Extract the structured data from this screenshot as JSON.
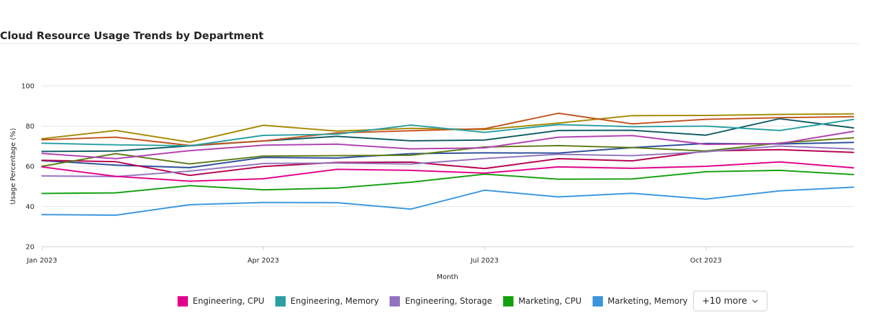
{
  "chart_data": {
    "type": "line",
    "title": "Cloud Resource Usage Trends by Department",
    "xlabel": "Month",
    "ylabel": "Usage Percentage (%)",
    "ylim": [
      20,
      100
    ],
    "yticks": [
      "20",
      "40",
      "60",
      "80",
      "100"
    ],
    "x": [
      "2023-01",
      "2023-02",
      "2023-03",
      "2023-04",
      "2023-05",
      "2023-06",
      "2023-07",
      "2023-08",
      "2023-09",
      "2023-10",
      "2023-11",
      "2023-12"
    ],
    "xticks": [
      {
        "month_index": 0,
        "label": "Jan 2023"
      },
      {
        "month_index": 3,
        "label": "Apr 2023"
      },
      {
        "month_index": 6,
        "label": "Jul 2023"
      },
      {
        "month_index": 9,
        "label": "Oct 2023"
      }
    ],
    "grid": true,
    "legend_position": "bottom",
    "series": [
      {
        "name": "Engineering, CPU",
        "color": "#e3008c",
        "values": [
          59.7,
          55.0,
          52.6,
          53.8,
          58.5,
          58.0,
          56.6,
          59.7,
          59.0,
          60.0,
          62.2,
          59.2
        ]
      },
      {
        "name": "Engineering, Memory",
        "color": "#2aa0a4",
        "values": [
          71.5,
          70.7,
          70.2,
          75.4,
          76.0,
          80.5,
          76.9,
          80.8,
          79.7,
          80.0,
          77.8,
          83.3
        ]
      },
      {
        "name": "Engineering, Storage",
        "color": "#9373c0",
        "values": [
          55.2,
          54.9,
          57.6,
          61.4,
          61.6,
          61.1,
          63.9,
          66.0,
          65.3,
          67.2,
          70.1,
          68.6
        ]
      },
      {
        "name": "Marketing, CPU",
        "color": "#13a10e",
        "values": [
          46.5,
          46.8,
          50.4,
          48.3,
          49.2,
          52.1,
          56.1,
          53.6,
          53.7,
          57.3,
          58.0,
          55.9
        ]
      },
      {
        "name": "Marketing, Memory",
        "color": "#3a96dd",
        "values": [
          36.0,
          35.7,
          40.9,
          42.0,
          41.9,
          38.7,
          48.1,
          44.8,
          46.6,
          43.7,
          47.8,
          49.6
        ]
      },
      {
        "name": "",
        "color": "#c4531f",
        "values": [
          73.2,
          74.5,
          70.4,
          72.6,
          76.6,
          77.7,
          78.7,
          86.4,
          81.1,
          83.4,
          84.2,
          84.7
        ]
      },
      {
        "name": "",
        "color": "#a58a05",
        "values": [
          73.7,
          77.8,
          72.0,
          80.4,
          77.5,
          78.9,
          78.3,
          81.5,
          85.2,
          85.3,
          85.8,
          86.1
        ]
      },
      {
        "name": "",
        "color": "#0e5c63",
        "values": [
          67.4,
          67.6,
          70.2,
          72.6,
          74.9,
          72.7,
          73.1,
          77.8,
          77.9,
          75.5,
          83.7,
          79.1
        ]
      },
      {
        "name": "",
        "color": "#b13fb1",
        "values": [
          66.4,
          63.8,
          67.8,
          70.5,
          71.0,
          68.7,
          69.2,
          74.5,
          75.3,
          70.9,
          71.3,
          77.4
        ]
      },
      {
        "name": "",
        "color": "#5f7d17",
        "values": [
          60.0,
          66.3,
          61.2,
          65.1,
          65.3,
          65.5,
          69.6,
          70.3,
          69.3,
          67.6,
          71.6,
          74.2
        ]
      },
      {
        "name": "",
        "color": "#b7004f",
        "values": [
          63.0,
          62.3,
          55.5,
          59.9,
          61.9,
          62.1,
          58.9,
          63.8,
          62.7,
          67.6,
          68.3,
          66.9
        ]
      },
      {
        "name": "",
        "color": "#2b4f9b",
        "values": [
          62.8,
          60.6,
          59.3,
          64.4,
          64.1,
          66.3,
          66.7,
          66.6,
          69.3,
          71.4,
          71.1,
          71.9
        ]
      }
    ]
  },
  "legend": {
    "more_label": "+10 more"
  },
  "icons": {
    "more_chevron": "chevron-down-icon"
  }
}
